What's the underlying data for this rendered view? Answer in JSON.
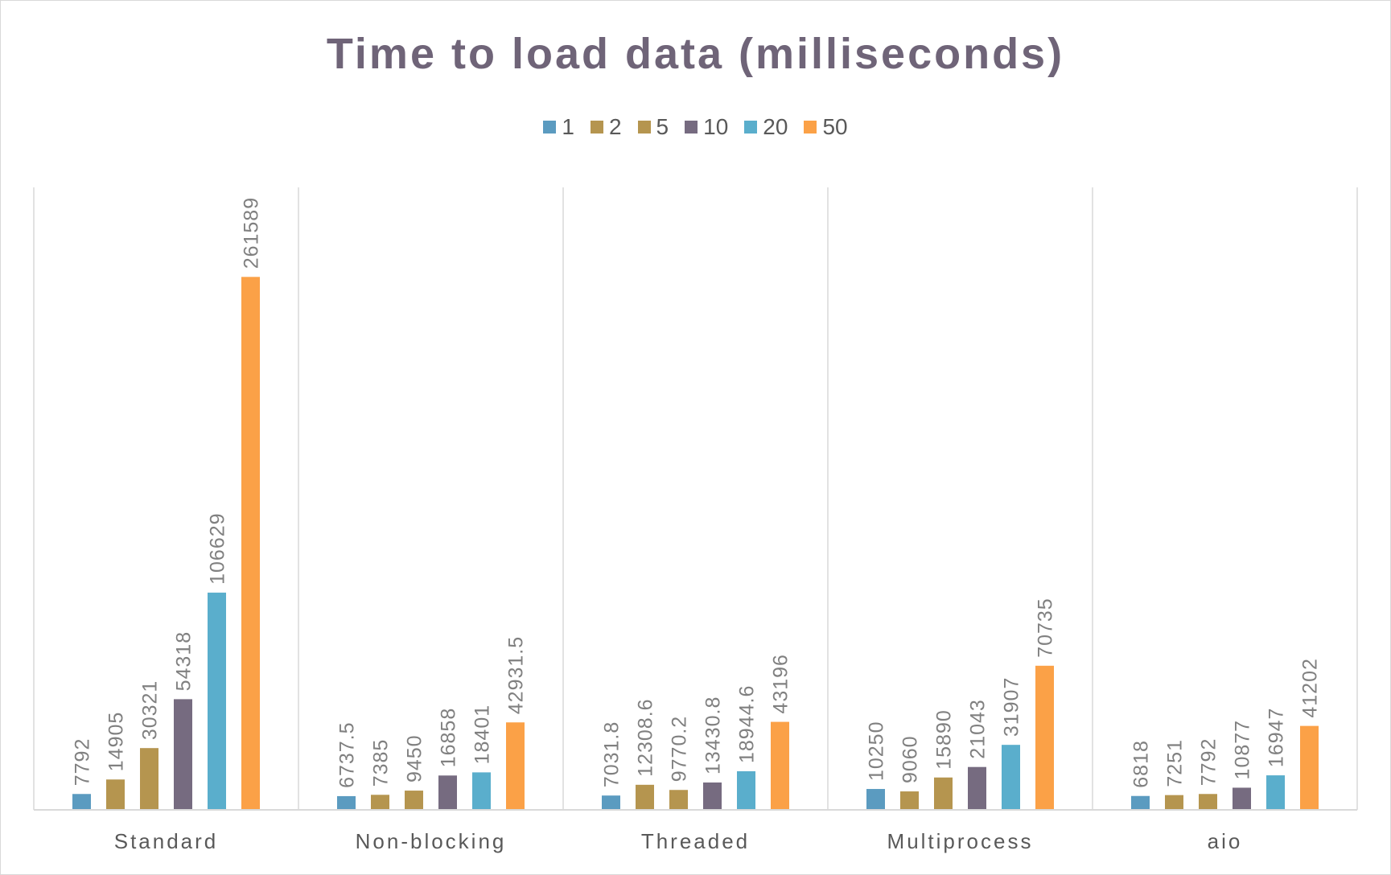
{
  "chart_data": {
    "type": "bar",
    "title": "Time to load data (milliseconds)",
    "xlabel": "",
    "ylabel": "",
    "ylim": [
      0,
      300000
    ],
    "grid": false,
    "legend_position": "top",
    "categories": [
      "Standard",
      "Non-blocking",
      "Threaded",
      "Multiprocess",
      "aio"
    ],
    "series": [
      {
        "name": "1",
        "color": "#5b9bc0",
        "values": [
          7792,
          6737.5,
          7031.8,
          10250,
          6818
        ],
        "labels": [
          "7792",
          "6737.5",
          "7031.8",
          "10250",
          "6818"
        ]
      },
      {
        "name": "2",
        "color": "#b5954f",
        "values": [
          14905,
          7385,
          12308.6,
          9060,
          7251
        ],
        "labels": [
          "14905",
          "7385",
          "12308.6",
          "9060",
          "7251"
        ]
      },
      {
        "name": "5",
        "color": "#b5954f",
        "values": [
          30321,
          9450,
          9770.2,
          15890,
          7792
        ],
        "labels": [
          "30321",
          "9450",
          "9770.2",
          "15890",
          "7792"
        ]
      },
      {
        "name": "10",
        "color": "#766b80",
        "values": [
          54318,
          16858,
          13430.8,
          21043,
          10877
        ],
        "labels": [
          "54318",
          "16858",
          "13430.8",
          "21043",
          "10877"
        ]
      },
      {
        "name": "20",
        "color": "#5aaecc",
        "values": [
          106629,
          18401,
          18944.6,
          31907,
          16947
        ],
        "labels": [
          "106629",
          "18401",
          "18944.6",
          "31907",
          "16947"
        ]
      },
      {
        "name": "50",
        "color": "#fba147",
        "values": [
          261589,
          42931.5,
          43196,
          70735,
          41202
        ],
        "labels": [
          "261589",
          "42931.5",
          "43196",
          "70735",
          "41202"
        ]
      }
    ]
  }
}
